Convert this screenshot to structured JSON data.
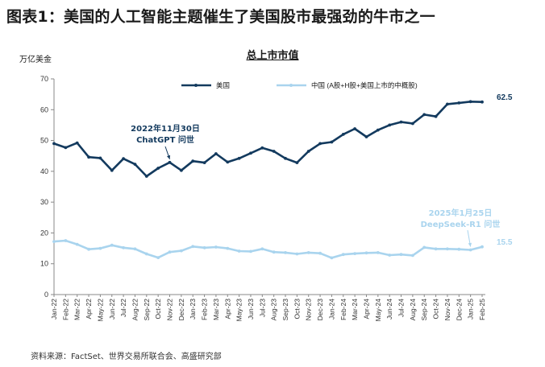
{
  "figure_title": "图表1：美国的人工智能主题催生了美国股市最强劲的牛市之一",
  "y_unit": "万亿美金",
  "source": "资料来源：FactSet、世界交易所联合会、高盛研究部",
  "colors": {
    "us": "#133a5e",
    "china": "#a9d4ee",
    "axis": "#888888"
  },
  "chart_data": {
    "type": "line",
    "title": "总上市市值",
    "xlabel": "",
    "ylabel": "万亿美金",
    "ylim": [
      0,
      70
    ],
    "yticks": [
      0,
      10,
      20,
      30,
      40,
      50,
      60,
      70
    ],
    "categories": [
      "Jan-22",
      "Feb-22",
      "Mar-22",
      "Apr-22",
      "May-22",
      "Jun-22",
      "Jul-22",
      "Aug-22",
      "Sep-22",
      "Oct-22",
      "Nov-22",
      "Dec-22",
      "Jan-23",
      "Feb-23",
      "Mar-23",
      "Apr-23",
      "May-23",
      "Jun-23",
      "Jul-23",
      "Aug-23",
      "Sep-23",
      "Oct-23",
      "Nov-23",
      "Dec-23",
      "Jan-24",
      "Feb-24",
      "Mar-24",
      "Apr-24",
      "May-24",
      "Jun-24",
      "Jul-24",
      "Aug-24",
      "Sep-24",
      "Oct-24",
      "Nov-24",
      "Dec-24",
      "Jan-25",
      "Feb-25"
    ],
    "series": [
      {
        "name": "美国",
        "color": "#133a5e",
        "end_label": "62.5",
        "values": [
          49.0,
          47.7,
          49.2,
          44.6,
          44.3,
          40.3,
          44.1,
          42.3,
          38.4,
          41.0,
          42.9,
          40.3,
          43.3,
          42.8,
          45.7,
          43.0,
          44.2,
          45.9,
          47.6,
          46.5,
          44.2,
          42.8,
          46.5,
          49.0,
          49.5,
          52.0,
          53.8,
          51.2,
          53.4,
          55.0,
          56.0,
          55.5,
          58.4,
          57.8,
          61.8,
          62.2,
          62.6,
          62.5
        ]
      },
      {
        "name": "中国 (A股+H股+美国上市的中概股)",
        "color": "#a9d4ee",
        "end_label": "15.5",
        "values": [
          17.2,
          17.5,
          16.3,
          14.7,
          15.0,
          16.0,
          15.2,
          14.8,
          13.2,
          12.0,
          13.8,
          14.2,
          15.6,
          15.2,
          15.4,
          15.0,
          14.1,
          14.0,
          14.8,
          13.8,
          13.6,
          13.2,
          13.6,
          13.4,
          11.9,
          13.0,
          13.3,
          13.5,
          13.6,
          12.8,
          13.0,
          12.7,
          15.3,
          14.8,
          14.8,
          14.7,
          14.5,
          15.5
        ]
      }
    ],
    "legend": "top",
    "annotations": [
      {
        "text_line1": "2022年11月30日",
        "text_line2": "ChatGPT 问世",
        "series": 0,
        "index": 10
      },
      {
        "text_line1": "2025年1月25日",
        "text_line2": "DeepSeek-R1 问世",
        "series": 1,
        "index": 36
      }
    ]
  }
}
